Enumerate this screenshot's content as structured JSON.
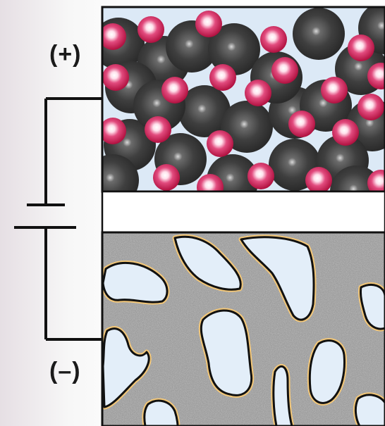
{
  "terminals": {
    "positive": "(+)",
    "negative": "(–)"
  },
  "colors": {
    "cathode_background": "#dce9f6",
    "large_particle": "#3a3a3a",
    "small_particle": "#d4124f",
    "separator": "#ffffff",
    "anode_matrix": "#9a9a9a",
    "anode_particle_fill": "#e3eef9",
    "anode_particle_rim": "#f5cf85",
    "wire": "#111111"
  }
}
